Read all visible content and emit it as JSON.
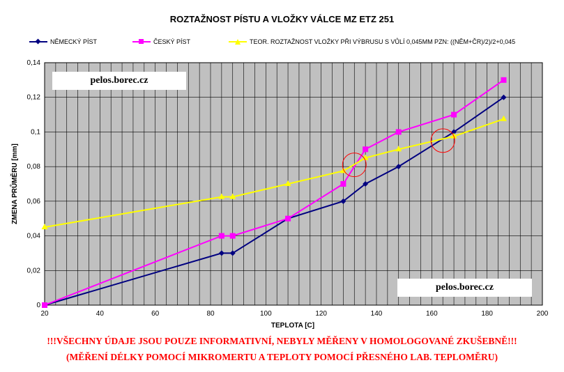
{
  "chart_data": {
    "type": "line",
    "title": "ROZTAŽNOST PÍSTU A VLOŽKY VÁLCE MZ ETZ 251",
    "xlabel": "TEPLOTA [C]",
    "ylabel": "ZMENA PRŮMĚRU [mm]",
    "xlim": [
      20,
      200
    ],
    "ylim": [
      0,
      0.14
    ],
    "x_ticks": [
      "20",
      "40",
      "60",
      "80",
      "100",
      "120",
      "140",
      "160",
      "180",
      "200"
    ],
    "y_ticks": [
      "0",
      "0,02",
      "0,04",
      "0,06",
      "0,08",
      "0,1",
      "0,12",
      "0,14"
    ],
    "grid": "on",
    "legend_position": "top",
    "series": [
      {
        "name": "NĚMECKÝ PÍST",
        "color": "#000080",
        "marker": "diamond",
        "x": [
          20,
          84,
          88,
          108,
          128,
          136,
          148,
          168,
          186
        ],
        "y": [
          0,
          0.03,
          0.03,
          0.05,
          0.06,
          0.07,
          0.08,
          0.1,
          0.12
        ]
      },
      {
        "name": "ČESKÝ PÍST",
        "color": "#ff00ff",
        "marker": "square",
        "x": [
          20,
          84,
          88,
          108,
          128,
          136,
          148,
          168,
          186
        ],
        "y": [
          0,
          0.04,
          0.04,
          0.05,
          0.07,
          0.09,
          0.1,
          0.11,
          0.13
        ]
      },
      {
        "name": "TEOR. ROZTAŽNOST VLOŽKY PŘI VÝBRUSU S VŮLÍ 0,045MM PZN: ((NĚM+ČR)/2)/2+0,045",
        "color": "#ffff00",
        "marker": "triangle",
        "x": [
          20,
          84,
          88,
          108,
          128,
          136,
          148,
          168,
          186
        ],
        "y": [
          0.045,
          0.0625,
          0.0625,
          0.07,
          0.0775,
          0.085,
          0.09,
          0.0975,
          0.1075
        ]
      }
    ],
    "annotations": [
      {
        "type": "circle",
        "color": "#ff0000",
        "x": 132,
        "y": 0.081
      },
      {
        "type": "circle",
        "color": "#ff0000",
        "x": 164,
        "y": 0.095
      }
    ],
    "plot_background": "#c0c0c0"
  },
  "watermarks": [
    "pelos.borec.cz",
    "pelos.borec.cz"
  ],
  "notes": [
    "!!!VŠECHNY ÚDAJE JSOU POUZE INFORMATIVNÍ, NEBYLY MĚŘENY V HOMOLOGOVANÉ ZKUŠEBNĚ!!!",
    "(MĚŘENÍ DÉLKY POMOCÍ MIKROMERTU A TEPLOTY POMOCÍ PŘESNÉHO LAB. TEPLOMĚRU)"
  ]
}
